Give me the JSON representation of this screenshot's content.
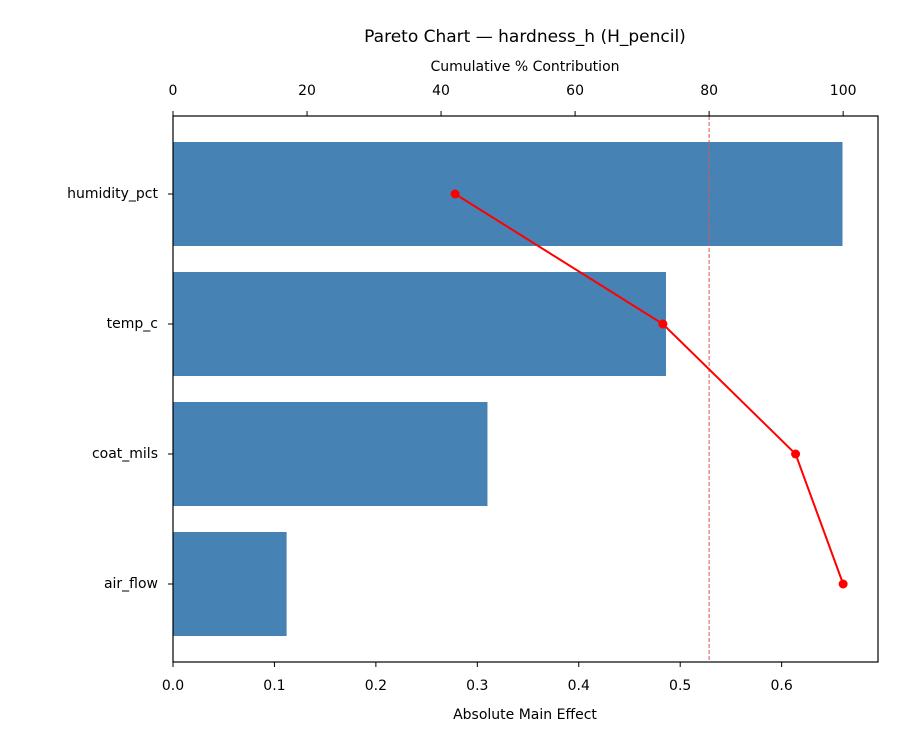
{
  "chart_data": {
    "type": "pareto",
    "title": "Pareto Chart — hardness_h (H_pencil)",
    "xlabel": "Absolute Main Effect",
    "x2label": "Cumulative % Contribution",
    "categories": [
      "humidity_pct",
      "temp_c",
      "coat_mils",
      "air_flow"
    ],
    "series": [
      {
        "color": "#4682b4",
        "values": [
          0.66,
          0.486,
          0.31,
          0.112
        ]
      },
      {
        "color": "#ff0000",
        "axis": "x2",
        "values": [
          42.1,
          73.1,
          92.9,
          100
        ]
      }
    ],
    "threshold": {
      "value": 80,
      "color": "#e05555"
    },
    "xlim": [
      0,
      0.695
    ],
    "xticks": [
      {
        "value": 0,
        "label": "0.0"
      },
      0.1,
      0.2,
      0.3,
      0.4,
      0.5,
      0.6
    ],
    "x2lim": [
      0,
      105.2
    ],
    "x2ticks": [
      0,
      20,
      40,
      60,
      80,
      100
    ]
  }
}
